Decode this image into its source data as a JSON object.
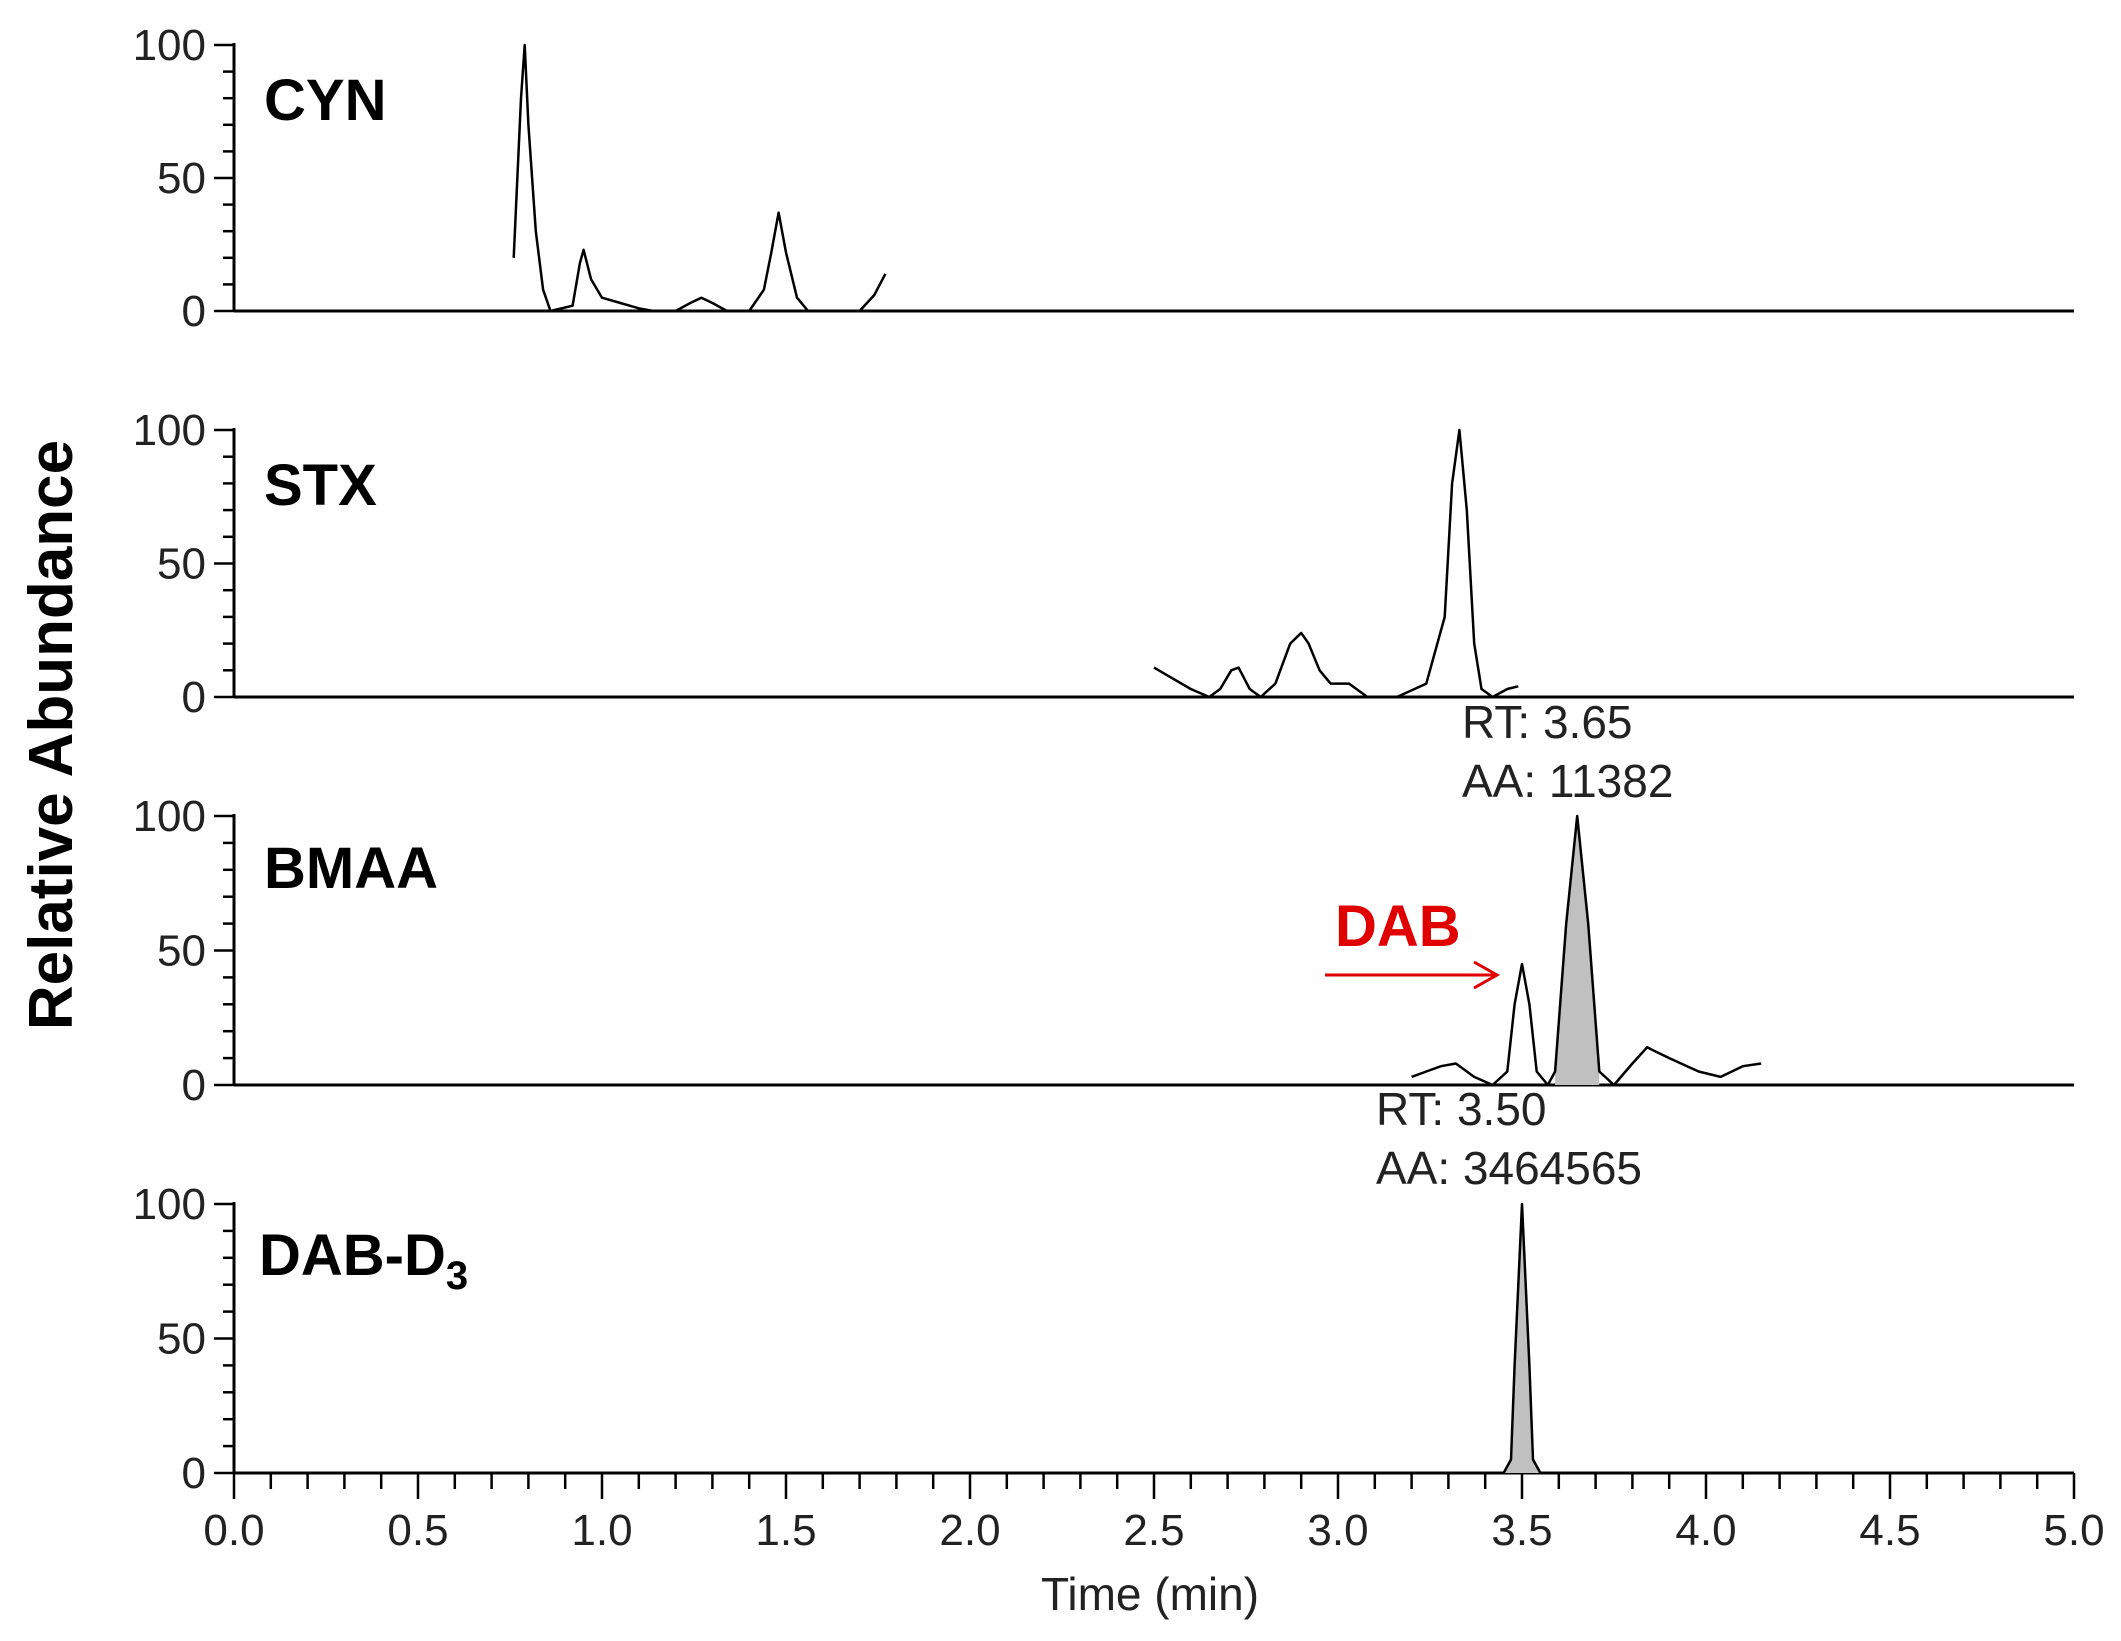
{
  "chart_data": {
    "type": "line",
    "ylabel": "Relative Abundance",
    "xlabel": "Time (min)",
    "xlim": [
      0.0,
      5.0
    ],
    "x_tick_labels": [
      "0.0",
      "0.5",
      "1.0",
      "1.5",
      "2.0",
      "2.5",
      "3.0",
      "3.5",
      "4.0",
      "4.5",
      "5.0"
    ],
    "x_ticks": [
      0.0,
      0.5,
      1.0,
      1.5,
      2.0,
      2.5,
      3.0,
      3.5,
      4.0,
      4.5,
      5.0
    ],
    "ylim": [
      0,
      100
    ],
    "y_tick_labels": [
      "0",
      "50",
      "100"
    ],
    "y_ticks": [
      0,
      50,
      100
    ],
    "grid": false,
    "line_color": "#000000",
    "fill_color": "#c0c0c0",
    "panels": [
      {
        "name": "CYN",
        "points": [
          [
            0.76,
            20
          ],
          [
            0.78,
            80
          ],
          [
            0.79,
            100
          ],
          [
            0.8,
            70
          ],
          [
            0.82,
            30
          ],
          [
            0.84,
            8
          ],
          [
            0.86,
            0
          ],
          [
            0.92,
            2
          ],
          [
            0.94,
            18
          ],
          [
            0.95,
            23
          ],
          [
            0.97,
            12
          ],
          [
            1.0,
            5
          ],
          [
            1.05,
            3
          ],
          [
            1.1,
            1
          ],
          [
            1.14,
            0
          ],
          [
            1.2,
            0
          ],
          [
            1.24,
            3
          ],
          [
            1.27,
            5
          ],
          [
            1.3,
            3
          ],
          [
            1.34,
            0
          ],
          [
            1.4,
            0
          ],
          [
            1.44,
            8
          ],
          [
            1.46,
            22
          ],
          [
            1.48,
            37
          ],
          [
            1.5,
            22
          ],
          [
            1.53,
            5
          ],
          [
            1.56,
            0
          ],
          [
            1.6,
            0
          ],
          [
            1.7,
            0
          ],
          [
            1.74,
            6
          ],
          [
            1.77,
            14
          ]
        ]
      },
      {
        "name": "STX",
        "points": [
          [
            2.5,
            11
          ],
          [
            2.55,
            7
          ],
          [
            2.6,
            3
          ],
          [
            2.65,
            0
          ],
          [
            2.68,
            3
          ],
          [
            2.71,
            10
          ],
          [
            2.73,
            11
          ],
          [
            2.76,
            3
          ],
          [
            2.79,
            0
          ],
          [
            2.83,
            5
          ],
          [
            2.87,
            20
          ],
          [
            2.9,
            24
          ],
          [
            2.92,
            20
          ],
          [
            2.95,
            10
          ],
          [
            2.98,
            5
          ],
          [
            3.03,
            5
          ],
          [
            3.08,
            0
          ],
          [
            3.16,
            0
          ],
          [
            3.24,
            5
          ],
          [
            3.29,
            30
          ],
          [
            3.31,
            80
          ],
          [
            3.33,
            100
          ],
          [
            3.35,
            70
          ],
          [
            3.37,
            20
          ],
          [
            3.39,
            3
          ],
          [
            3.42,
            0
          ],
          [
            3.46,
            3
          ],
          [
            3.49,
            4
          ]
        ]
      },
      {
        "name": "BMAA",
        "points": [
          [
            3.2,
            3
          ],
          [
            3.24,
            5
          ],
          [
            3.28,
            7
          ],
          [
            3.32,
            8
          ],
          [
            3.37,
            3
          ],
          [
            3.42,
            0
          ],
          [
            3.46,
            5
          ],
          [
            3.48,
            30
          ],
          [
            3.5,
            45
          ],
          [
            3.52,
            30
          ],
          [
            3.54,
            5
          ],
          [
            3.57,
            0
          ],
          [
            3.59,
            5
          ],
          [
            3.62,
            60
          ],
          [
            3.65,
            100
          ],
          [
            3.68,
            60
          ],
          [
            3.71,
            5
          ],
          [
            3.75,
            0
          ],
          [
            3.8,
            8
          ],
          [
            3.84,
            14
          ],
          [
            3.9,
            10
          ],
          [
            3.98,
            5
          ],
          [
            4.04,
            3
          ],
          [
            4.1,
            7
          ],
          [
            4.15,
            8
          ]
        ],
        "filled_peak": {
          "from": 3.58,
          "to": 3.73
        },
        "dab_label": "DAB",
        "rt_label": "RT: 3.65",
        "aa_label": "AA: 11382"
      },
      {
        "name": "DAB-D",
        "name_subscript": "3",
        "points": [
          [
            3.45,
            0
          ],
          [
            3.47,
            5
          ],
          [
            3.48,
            40
          ],
          [
            3.5,
            100
          ],
          [
            3.52,
            40
          ],
          [
            3.53,
            5
          ],
          [
            3.55,
            0
          ]
        ],
        "filled_peak": {
          "from": 3.45,
          "to": 3.55
        },
        "rt_label": "RT: 3.50",
        "aa_label": "AA: 3464565"
      }
    ]
  }
}
